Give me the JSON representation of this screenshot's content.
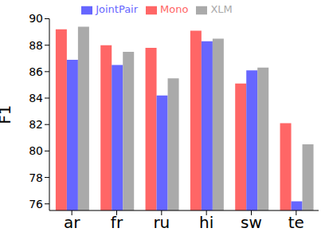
{
  "chart_data": {
    "type": "bar",
    "y_label": "F1",
    "categories": [
      "ar",
      "fr",
      "ru",
      "hi",
      "sw",
      "te"
    ],
    "series": [
      {
        "name": "Mono",
        "color": "#ff6666",
        "values": [
          89.2,
          88.0,
          87.8,
          89.1,
          85.1,
          82.1
        ]
      },
      {
        "name": "JointPair",
        "color": "#6666ff",
        "values": [
          86.9,
          86.5,
          84.2,
          88.3,
          86.1,
          76.2
        ]
      },
      {
        "name": "XLM",
        "color": "#aaaaaa",
        "values": [
          89.4,
          87.5,
          85.5,
          88.5,
          86.3,
          80.5
        ]
      }
    ],
    "ylim": [
      75.5,
      90
    ],
    "yticks": [
      76,
      78,
      80,
      82,
      84,
      86,
      88,
      90
    ],
    "grid": false,
    "legend": "top"
  }
}
